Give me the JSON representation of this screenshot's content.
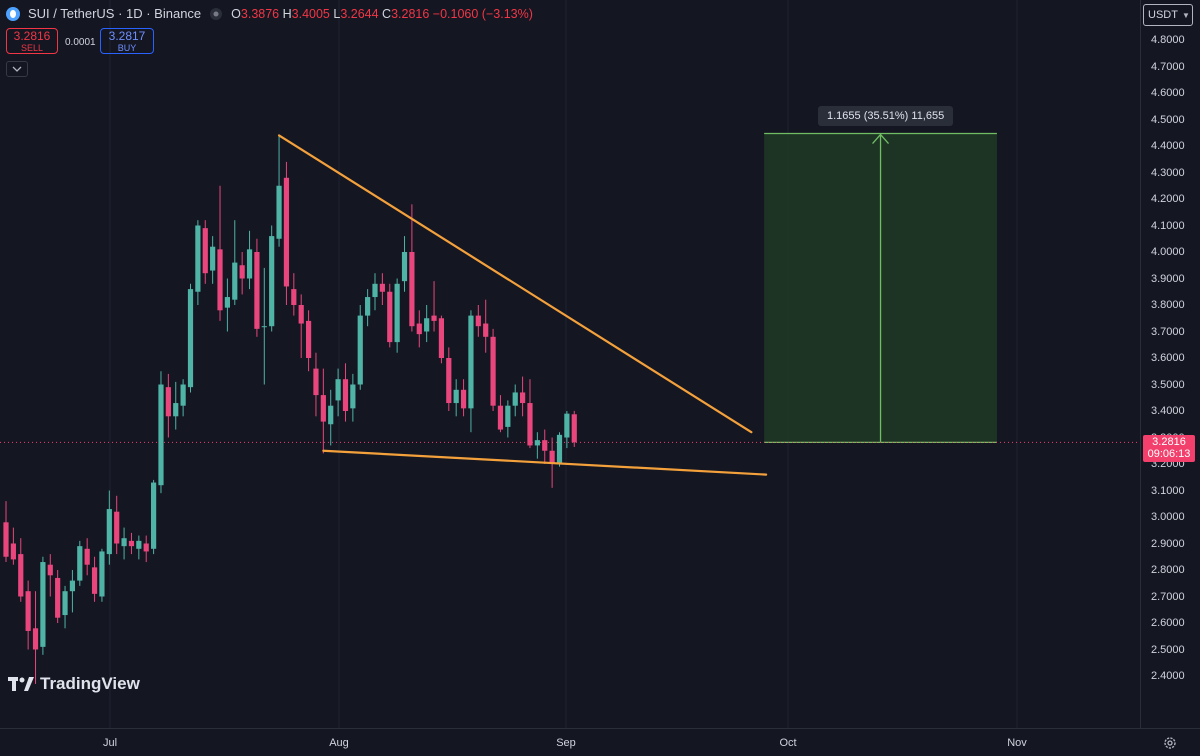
{
  "header": {
    "symbol": "SUI / TetherUS · 1D · Binance",
    "open_label": "O",
    "open": "3.3876",
    "high_label": "H",
    "high": "3.4005",
    "low_label": "L",
    "low": "3.2644",
    "close_label": "C",
    "close": "3.2816",
    "change": "−0.1060 (−3.13%)"
  },
  "trade": {
    "sell_price": "3.2816",
    "sell_label": "SELL",
    "spread": "0.0001",
    "buy_price": "3.2817",
    "buy_label": "BUY"
  },
  "price_axis": {
    "currency": "USDT",
    "ticks": [
      "4.8000",
      "4.7000",
      "4.6000",
      "4.5000",
      "4.4000",
      "4.3000",
      "4.2000",
      "4.1000",
      "4.0000",
      "3.9000",
      "3.8000",
      "3.7000",
      "3.6000",
      "3.5000",
      "3.4000",
      "3.3000",
      "3.2000",
      "3.1000",
      "3.0000",
      "2.9000",
      "2.8000",
      "2.7000",
      "2.6000",
      "2.5000",
      "2.4000"
    ],
    "last_price": "3.2816",
    "countdown": "09:06:13"
  },
  "time_axis": {
    "labels": [
      "Jul",
      "Aug",
      "Sep",
      "Oct",
      "Nov"
    ]
  },
  "measure": {
    "label": "1.1655 (35.51%) 11,655"
  },
  "brand": {
    "name": "TradingView"
  },
  "colors": {
    "up": "#4fb3a6",
    "down": "#e8467c",
    "trendline": "#f4a13c",
    "target_fill": "#1f3a24",
    "target_stroke": "#6fbe64",
    "last_price": "#f23f6b"
  },
  "chart_data": {
    "type": "candlestick",
    "title": "SUI / TetherUS · 1D · Binance",
    "y_range": [
      2.35,
      4.85
    ],
    "candles": [
      {
        "o": 2.98,
        "h": 3.06,
        "l": 2.83,
        "c": 2.85
      },
      {
        "o": 2.9,
        "h": 2.96,
        "l": 2.82,
        "c": 2.84
      },
      {
        "o": 2.86,
        "h": 2.92,
        "l": 2.68,
        "c": 2.7
      },
      {
        "o": 2.72,
        "h": 2.76,
        "l": 2.5,
        "c": 2.57
      },
      {
        "o": 2.58,
        "h": 2.72,
        "l": 2.37,
        "c": 2.5
      },
      {
        "o": 2.51,
        "h": 2.85,
        "l": 2.48,
        "c": 2.83
      },
      {
        "o": 2.82,
        "h": 2.86,
        "l": 2.7,
        "c": 2.78
      },
      {
        "o": 2.77,
        "h": 2.8,
        "l": 2.6,
        "c": 2.62
      },
      {
        "o": 2.63,
        "h": 2.74,
        "l": 2.58,
        "c": 2.72
      },
      {
        "o": 2.72,
        "h": 2.8,
        "l": 2.64,
        "c": 2.76
      },
      {
        "o": 2.76,
        "h": 2.91,
        "l": 2.74,
        "c": 2.89
      },
      {
        "o": 2.88,
        "h": 2.92,
        "l": 2.78,
        "c": 2.82
      },
      {
        "o": 2.81,
        "h": 2.85,
        "l": 2.68,
        "c": 2.71
      },
      {
        "o": 2.7,
        "h": 2.88,
        "l": 2.68,
        "c": 2.87
      },
      {
        "o": 2.86,
        "h": 3.1,
        "l": 2.82,
        "c": 3.03
      },
      {
        "o": 3.02,
        "h": 3.08,
        "l": 2.86,
        "c": 2.9
      },
      {
        "o": 2.89,
        "h": 2.96,
        "l": 2.84,
        "c": 2.92
      },
      {
        "o": 2.91,
        "h": 2.94,
        "l": 2.86,
        "c": 2.89
      },
      {
        "o": 2.88,
        "h": 2.93,
        "l": 2.84,
        "c": 2.91
      },
      {
        "o": 2.9,
        "h": 2.93,
        "l": 2.83,
        "c": 2.87
      },
      {
        "o": 2.88,
        "h": 3.14,
        "l": 2.86,
        "c": 3.13
      },
      {
        "o": 3.12,
        "h": 3.55,
        "l": 3.09,
        "c": 3.5
      },
      {
        "o": 3.49,
        "h": 3.54,
        "l": 3.3,
        "c": 3.38
      },
      {
        "o": 3.38,
        "h": 3.51,
        "l": 3.33,
        "c": 3.43
      },
      {
        "o": 3.42,
        "h": 3.52,
        "l": 3.38,
        "c": 3.5
      },
      {
        "o": 3.49,
        "h": 3.88,
        "l": 3.47,
        "c": 3.86
      },
      {
        "o": 3.85,
        "h": 4.12,
        "l": 3.8,
        "c": 4.1
      },
      {
        "o": 4.09,
        "h": 4.12,
        "l": 3.88,
        "c": 3.92
      },
      {
        "o": 3.93,
        "h": 4.06,
        "l": 3.88,
        "c": 4.02
      },
      {
        "o": 4.01,
        "h": 4.25,
        "l": 3.74,
        "c": 3.78
      },
      {
        "o": 3.79,
        "h": 3.9,
        "l": 3.7,
        "c": 3.83
      },
      {
        "o": 3.82,
        "h": 4.12,
        "l": 3.8,
        "c": 3.96
      },
      {
        "o": 3.95,
        "h": 4.0,
        "l": 3.84,
        "c": 3.9
      },
      {
        "o": 3.9,
        "h": 4.08,
        "l": 3.86,
        "c": 4.01
      },
      {
        "o": 4.0,
        "h": 4.05,
        "l": 3.68,
        "c": 3.71
      },
      {
        "o": 3.72,
        "h": 3.94,
        "l": 3.5,
        "c": 3.72
      },
      {
        "o": 3.72,
        "h": 4.1,
        "l": 3.7,
        "c": 4.06
      },
      {
        "o": 4.05,
        "h": 4.44,
        "l": 4.02,
        "c": 4.25
      },
      {
        "o": 4.28,
        "h": 4.34,
        "l": 3.8,
        "c": 3.87
      },
      {
        "o": 3.86,
        "h": 3.92,
        "l": 3.76,
        "c": 3.8
      },
      {
        "o": 3.8,
        "h": 3.84,
        "l": 3.6,
        "c": 3.73
      },
      {
        "o": 3.74,
        "h": 3.78,
        "l": 3.55,
        "c": 3.6
      },
      {
        "o": 3.56,
        "h": 3.62,
        "l": 3.38,
        "c": 3.46
      },
      {
        "o": 3.46,
        "h": 3.56,
        "l": 3.24,
        "c": 3.36
      },
      {
        "o": 3.35,
        "h": 3.48,
        "l": 3.27,
        "c": 3.42
      },
      {
        "o": 3.44,
        "h": 3.56,
        "l": 3.38,
        "c": 3.52
      },
      {
        "o": 3.52,
        "h": 3.58,
        "l": 3.36,
        "c": 3.4
      },
      {
        "o": 3.41,
        "h": 3.54,
        "l": 3.36,
        "c": 3.5
      },
      {
        "o": 3.5,
        "h": 3.8,
        "l": 3.48,
        "c": 3.76
      },
      {
        "o": 3.76,
        "h": 3.86,
        "l": 3.72,
        "c": 3.83
      },
      {
        "o": 3.83,
        "h": 3.92,
        "l": 3.78,
        "c": 3.88
      },
      {
        "o": 3.88,
        "h": 3.92,
        "l": 3.8,
        "c": 3.85
      },
      {
        "o": 3.85,
        "h": 3.88,
        "l": 3.64,
        "c": 3.66
      },
      {
        "o": 3.66,
        "h": 3.9,
        "l": 3.62,
        "c": 3.88
      },
      {
        "o": 3.89,
        "h": 4.06,
        "l": 3.85,
        "c": 4.0
      },
      {
        "o": 4.0,
        "h": 4.18,
        "l": 3.7,
        "c": 3.72
      },
      {
        "o": 3.73,
        "h": 3.78,
        "l": 3.64,
        "c": 3.69
      },
      {
        "o": 3.7,
        "h": 3.8,
        "l": 3.66,
        "c": 3.75
      },
      {
        "o": 3.76,
        "h": 3.89,
        "l": 3.7,
        "c": 3.74
      },
      {
        "o": 3.75,
        "h": 3.76,
        "l": 3.58,
        "c": 3.6
      },
      {
        "o": 3.6,
        "h": 3.64,
        "l": 3.4,
        "c": 3.43
      },
      {
        "o": 3.43,
        "h": 3.52,
        "l": 3.38,
        "c": 3.48
      },
      {
        "o": 3.48,
        "h": 3.52,
        "l": 3.38,
        "c": 3.41
      },
      {
        "o": 3.41,
        "h": 3.78,
        "l": 3.32,
        "c": 3.76
      },
      {
        "o": 3.76,
        "h": 3.8,
        "l": 3.68,
        "c": 3.72
      },
      {
        "o": 3.73,
        "h": 3.82,
        "l": 3.62,
        "c": 3.68
      },
      {
        "o": 3.68,
        "h": 3.71,
        "l": 3.4,
        "c": 3.42
      },
      {
        "o": 3.42,
        "h": 3.46,
        "l": 3.32,
        "c": 3.33
      },
      {
        "o": 3.34,
        "h": 3.44,
        "l": 3.3,
        "c": 3.42
      },
      {
        "o": 3.42,
        "h": 3.5,
        "l": 3.38,
        "c": 3.47
      },
      {
        "o": 3.47,
        "h": 3.53,
        "l": 3.38,
        "c": 3.43
      },
      {
        "o": 3.43,
        "h": 3.52,
        "l": 3.26,
        "c": 3.27
      },
      {
        "o": 3.27,
        "h": 3.32,
        "l": 3.22,
        "c": 3.29
      },
      {
        "o": 3.29,
        "h": 3.33,
        "l": 3.2,
        "c": 3.25
      },
      {
        "o": 3.25,
        "h": 3.3,
        "l": 3.11,
        "c": 3.2
      },
      {
        "o": 3.2,
        "h": 3.32,
        "l": 3.19,
        "c": 3.31
      },
      {
        "o": 3.3,
        "h": 3.4,
        "l": 3.26,
        "c": 3.39
      },
      {
        "o": 3.3876,
        "h": 3.4005,
        "l": 3.2644,
        "c": 3.2816
      }
    ],
    "trendlines": [
      {
        "from_index": 37,
        "from_price": 4.44,
        "to_index": 101,
        "to_price": 3.32
      },
      {
        "from_index": 43,
        "from_price": 3.25,
        "to_index": 103,
        "to_price": 3.16
      }
    ],
    "target_zone": {
      "from_index": 103,
      "to_index": 134,
      "low": 3.2816,
      "high": 4.4471,
      "change": "1.1655 (35.51%) 11,655"
    },
    "last_price": 3.2816,
    "x_labels": [
      "Jul",
      "Aug",
      "Sep",
      "Oct",
      "Nov"
    ]
  }
}
